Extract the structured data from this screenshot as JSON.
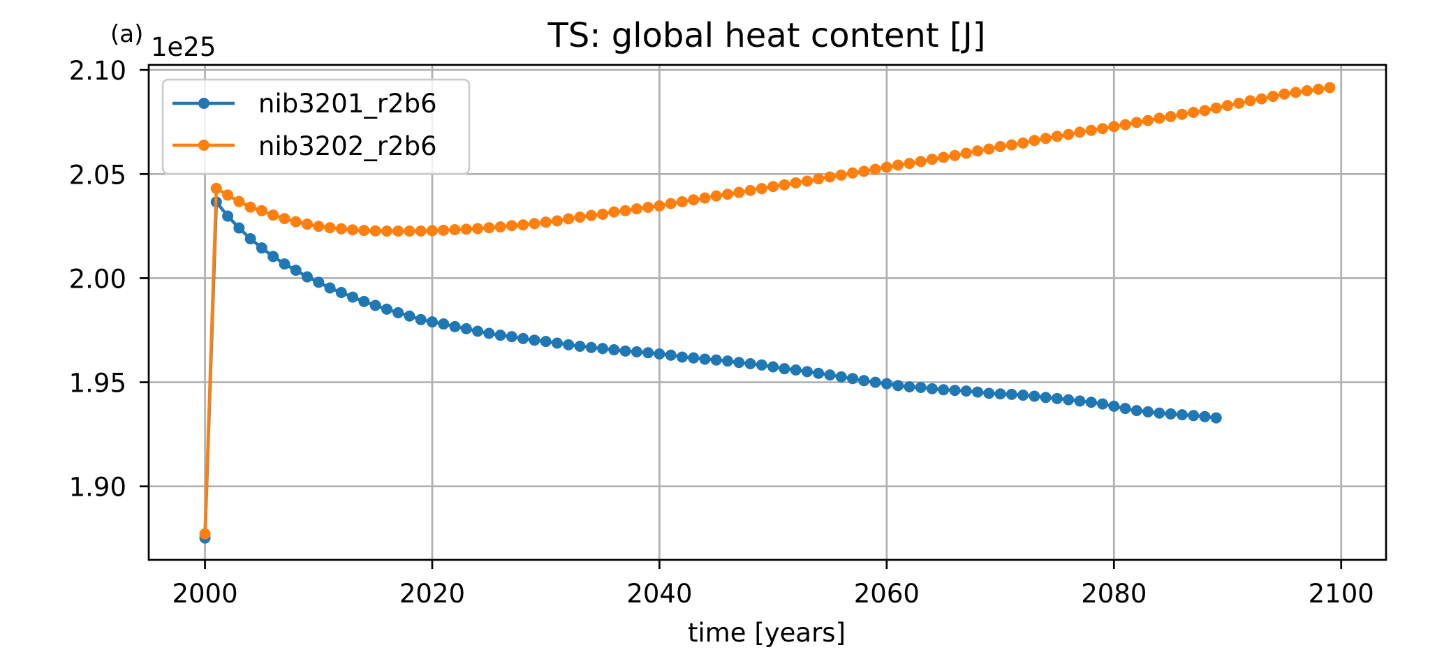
{
  "chart_data": {
    "type": "line",
    "panel_label": "(a)",
    "title": "TS: global heat content [J]",
    "xlabel": "time [years]",
    "ylabel": "",
    "y_offset_text": "1e25",
    "xlim": [
      1995.05,
      2103.95
    ],
    "ylim": [
      1.8647,
      2.1024
    ],
    "x_ticks": [
      2000,
      2020,
      2040,
      2060,
      2080,
      2100
    ],
    "x_tick_labels": [
      "2000",
      "2020",
      "2040",
      "2060",
      "2080",
      "2100"
    ],
    "y_ticks": [
      1.9,
      1.95,
      2.0,
      2.05,
      2.1
    ],
    "y_tick_labels": [
      "1.90",
      "1.95",
      "2.00",
      "2.05",
      "2.10"
    ],
    "grid": true,
    "legend_position": "top-left",
    "series": [
      {
        "name": "nib3201_r2b6",
        "color": "#1f77b4",
        "x_start": 2000,
        "x_step": 1,
        "values": [
          1.8752,
          2.0366,
          2.0298,
          2.0241,
          2.0189,
          2.0145,
          2.0104,
          2.0068,
          2.0038,
          2.0006,
          1.998,
          1.9953,
          1.9931,
          1.9909,
          1.9888,
          1.9869,
          1.9851,
          1.9834,
          1.9818,
          1.9801,
          1.979,
          1.978,
          1.9767,
          1.9757,
          1.9745,
          1.9735,
          1.9726,
          1.9719,
          1.971,
          1.9702,
          1.9696,
          1.9688,
          1.968,
          1.9673,
          1.9667,
          1.9662,
          1.9656,
          1.965,
          1.9646,
          1.9642,
          1.9636,
          1.963,
          1.9621,
          1.9617,
          1.9611,
          1.9607,
          1.9602,
          1.9595,
          1.9589,
          1.9583,
          1.9574,
          1.9565,
          1.9559,
          1.9551,
          1.9543,
          1.9535,
          1.9526,
          1.9518,
          1.9508,
          1.95,
          1.9493,
          1.9484,
          1.9478,
          1.9475,
          1.9469,
          1.9464,
          1.9461,
          1.9458,
          1.9453,
          1.9447,
          1.9444,
          1.9442,
          1.9438,
          1.9433,
          1.9427,
          1.9422,
          1.9416,
          1.941,
          1.9404,
          1.9396,
          1.9385,
          1.9374,
          1.9364,
          1.9358,
          1.9352,
          1.9348,
          1.9344,
          1.934,
          1.9335,
          1.9329
        ]
      },
      {
        "name": "nib3202_r2b6",
        "color": "#ff7f0e",
        "x_start": 2000,
        "x_step": 1,
        "values": [
          1.8772,
          2.0431,
          2.0399,
          2.0368,
          2.0341,
          2.0324,
          2.0303,
          2.0286,
          2.0271,
          2.0259,
          2.0249,
          2.0242,
          2.0237,
          2.0232,
          2.0229,
          2.0227,
          2.0226,
          2.0226,
          2.0226,
          2.0226,
          2.0228,
          2.023,
          2.0233,
          2.0235,
          2.0238,
          2.0242,
          2.0246,
          2.0252,
          2.0256,
          2.0262,
          2.0269,
          2.0275,
          2.0285,
          2.0293,
          2.0301,
          2.0307,
          2.0318,
          2.0324,
          2.0333,
          2.034,
          2.0347,
          2.0358,
          2.0367,
          2.0376,
          2.0385,
          2.0395,
          2.0403,
          2.0412,
          2.0421,
          2.043,
          2.044,
          2.0448,
          2.0458,
          2.0466,
          2.0477,
          2.0486,
          2.0495,
          2.0505,
          2.0513,
          2.0523,
          2.0533,
          2.0543,
          2.0551,
          2.056,
          2.0571,
          2.058,
          2.0589,
          2.06,
          2.0611,
          2.062,
          2.0632,
          2.064,
          2.0649,
          2.0661,
          2.0671,
          2.0681,
          2.069,
          2.0701,
          2.071,
          2.0718,
          2.0728,
          2.0737,
          2.0748,
          2.0757,
          2.0768,
          2.0776,
          2.0787,
          2.0796,
          2.0805,
          2.0817,
          2.0829,
          2.084,
          2.0852,
          2.0861,
          2.0873,
          2.0884,
          2.0892,
          2.09,
          2.0907,
          2.0915
        ]
      }
    ]
  }
}
